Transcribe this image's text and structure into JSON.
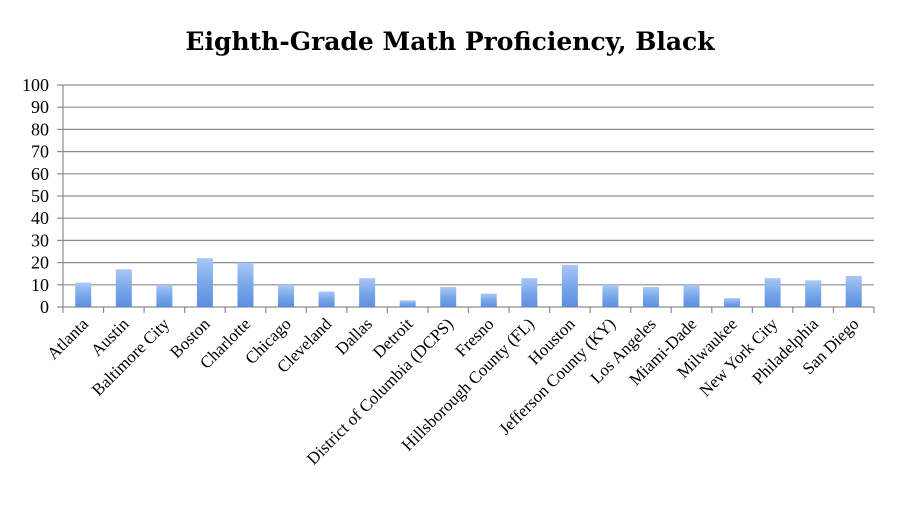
{
  "chart_data": {
    "type": "bar",
    "title": "Eighth-Grade Math Proficiency, Black",
    "xlabel": "",
    "ylabel": "",
    "ylim": [
      0,
      100
    ],
    "yticks": [
      "0",
      "10",
      "20",
      "30",
      "40",
      "50",
      "60",
      "70",
      "80",
      "90",
      "100"
    ],
    "grid": true,
    "legend": "none",
    "bar_color": "#6f9fe6",
    "categories": [
      "Atlanta",
      "Austin",
      "Baltimore City",
      "Boston",
      "Charlotte",
      "Chicago",
      "Cleveland",
      "Dallas",
      "Detroit",
      "District of Columbia (DCPS)",
      "Fresno",
      "Hillsborough County (FL)",
      "Houston",
      "Jefferson County (KY)",
      "Los Angeles",
      "Miami-Dade",
      "Milwaukee",
      "New York City",
      "Philadelphia",
      "San Diego"
    ],
    "values": [
      11,
      17,
      10,
      22,
      20,
      10,
      7,
      13,
      3,
      9,
      6,
      13,
      19,
      10,
      9,
      10,
      4,
      13,
      12,
      14
    ]
  }
}
